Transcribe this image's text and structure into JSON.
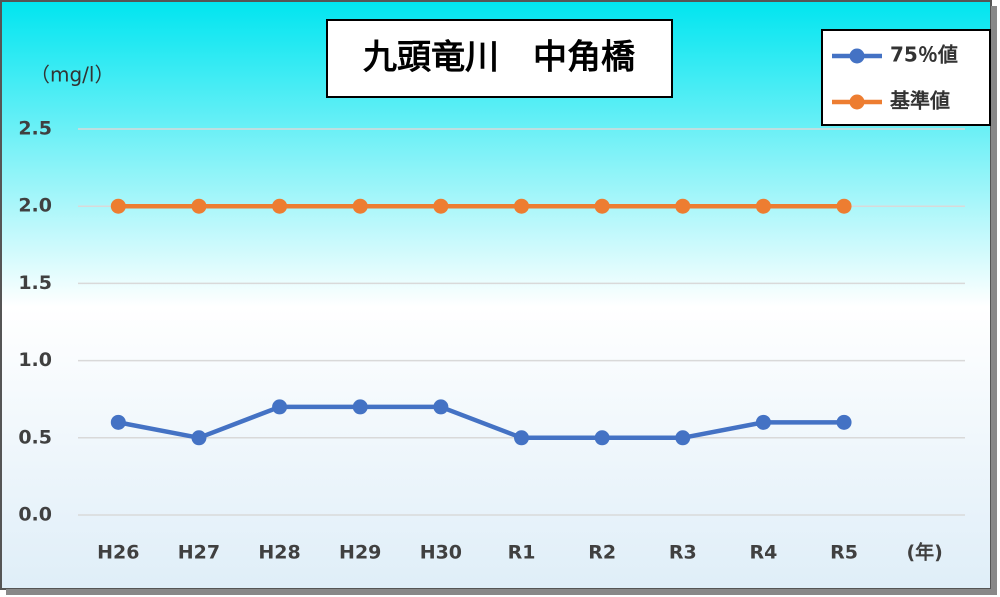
{
  "chart_data": {
    "type": "line",
    "title": "九頭竜川　中角橋",
    "y_label": "（mg/l）",
    "x_label": "(年)",
    "categories": [
      "H26",
      "H27",
      "H28",
      "H29",
      "H30",
      "R1",
      "R2",
      "R3",
      "R4",
      "R5"
    ],
    "series": [
      {
        "name": "75％値",
        "color": "#4472c4",
        "values": [
          0.6,
          0.5,
          0.7,
          0.7,
          0.7,
          0.5,
          0.5,
          0.5,
          0.6,
          0.6
        ]
      },
      {
        "name": "基準値",
        "color": "#ed7d31",
        "values": [
          2.0,
          2.0,
          2.0,
          2.0,
          2.0,
          2.0,
          2.0,
          2.0,
          2.0,
          2.0
        ]
      }
    ],
    "ylim": [
      0,
      2.5
    ],
    "yticks": [
      {
        "value": 0,
        "label": "0.0"
      },
      0.5,
      {
        "value": 1,
        "label": "1.0"
      },
      1.5,
      {
        "value": 2,
        "label": "2.0"
      },
      2.5
    ],
    "grid": true,
    "legend": "top-right"
  }
}
